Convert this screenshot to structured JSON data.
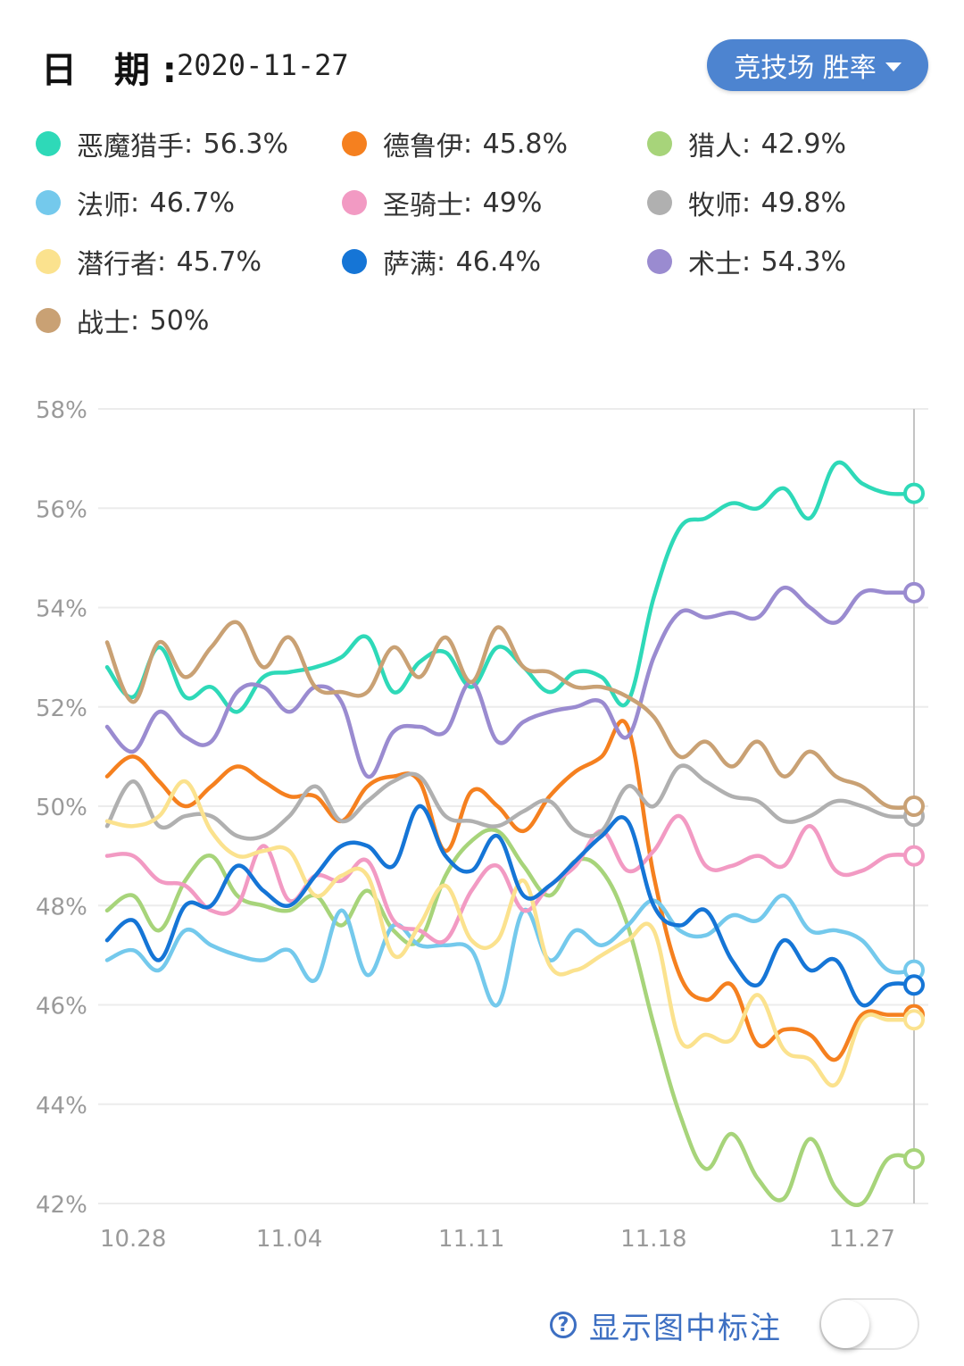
{
  "header": {
    "date_label": "日 期:",
    "date_value": "2020-11-27",
    "mode_button": "竞技场 胜率"
  },
  "legend": [
    {
      "name": "恶魔猎手",
      "value": "56.3%",
      "color": "#2ed9b8"
    },
    {
      "name": "德鲁伊",
      "value": "45.8%",
      "color": "#f5801f"
    },
    {
      "name": "猎人",
      "value": "42.9%",
      "color": "#a7d47a"
    },
    {
      "name": "法师",
      "value": "46.7%",
      "color": "#74c9ec"
    },
    {
      "name": "圣骑士",
      "value": "49%",
      "color": "#f29ac3"
    },
    {
      "name": "牧师",
      "value": "49.8%",
      "color": "#b0b0b0"
    },
    {
      "name": "潜行者",
      "value": "45.7%",
      "color": "#fbe28e"
    },
    {
      "name": "萨满",
      "value": "46.4%",
      "color": "#1575d6"
    },
    {
      "name": "术士",
      "value": "54.3%",
      "color": "#9a8bd0"
    },
    {
      "name": "战士",
      "value": "50%",
      "color": "#c9a174"
    }
  ],
  "chart_data": {
    "type": "line",
    "title": "竞技场 胜率",
    "ylim": [
      42,
      58
    ],
    "yticks": [
      "58%",
      "56%",
      "54%",
      "52%",
      "50%",
      "48%",
      "46%",
      "44%",
      "42%"
    ],
    "xlabels": [
      "10.28",
      "11.04",
      "11.11",
      "11.18",
      "11.27"
    ],
    "x": [
      "10.27",
      "10.28",
      "10.29",
      "10.30",
      "10.31",
      "11.01",
      "11.02",
      "11.03",
      "11.04",
      "11.05",
      "11.06",
      "11.07",
      "11.08",
      "11.09",
      "11.10",
      "11.11",
      "11.12",
      "11.13",
      "11.14",
      "11.15",
      "11.16",
      "11.17",
      "11.18",
      "11.19",
      "11.20",
      "11.21",
      "11.22",
      "11.23",
      "11.24",
      "11.25",
      "11.26",
      "11.27"
    ],
    "series": [
      {
        "name": "恶魔猎手",
        "color": "#2ed9b8",
        "values": [
          52.8,
          52.2,
          53.2,
          52.2,
          52.4,
          51.9,
          52.6,
          52.7,
          52.8,
          53.0,
          53.4,
          52.3,
          52.9,
          53.1,
          52.4,
          53.2,
          52.8,
          52.3,
          52.7,
          52.6,
          52.1,
          54.2,
          55.6,
          55.8,
          56.1,
          56.0,
          56.4,
          55.8,
          56.9,
          56.5,
          56.3,
          56.3
        ]
      },
      {
        "name": "德鲁伊",
        "color": "#f5801f",
        "values": [
          50.6,
          51.0,
          50.5,
          50.0,
          50.4,
          50.8,
          50.5,
          50.2,
          50.2,
          49.7,
          50.4,
          50.6,
          50.5,
          49.1,
          50.3,
          50.0,
          49.5,
          50.2,
          50.7,
          51.0,
          51.6,
          48.6,
          46.6,
          46.1,
          46.4,
          45.2,
          45.5,
          45.4,
          44.9,
          45.8,
          45.8,
          45.8
        ]
      },
      {
        "name": "猎人",
        "color": "#a7d47a",
        "values": [
          47.9,
          48.2,
          47.5,
          48.5,
          49.0,
          48.2,
          48.0,
          47.9,
          48.2,
          47.6,
          48.3,
          47.5,
          47.3,
          48.6,
          49.3,
          49.5,
          48.8,
          48.2,
          48.9,
          48.7,
          47.6,
          45.6,
          43.8,
          42.7,
          43.4,
          42.5,
          42.1,
          43.3,
          42.3,
          42.0,
          42.9,
          42.9
        ]
      },
      {
        "name": "法师",
        "color": "#74c9ec",
        "values": [
          46.9,
          47.1,
          46.7,
          47.5,
          47.2,
          47.0,
          46.9,
          47.1,
          46.5,
          47.9,
          46.6,
          47.6,
          47.2,
          47.2,
          47.1,
          46.0,
          47.9,
          46.9,
          47.5,
          47.2,
          47.6,
          48.1,
          47.5,
          47.4,
          47.8,
          47.7,
          48.2,
          47.5,
          47.5,
          47.3,
          46.7,
          46.7
        ]
      },
      {
        "name": "圣骑士",
        "color": "#f29ac3",
        "values": [
          49.0,
          49.0,
          48.5,
          48.4,
          47.9,
          48.0,
          49.2,
          48.1,
          48.6,
          48.5,
          48.9,
          47.7,
          47.5,
          47.3,
          48.3,
          48.8,
          47.9,
          48.4,
          48.8,
          49.5,
          48.7,
          49.1,
          49.8,
          48.8,
          48.8,
          49.0,
          48.8,
          49.6,
          48.7,
          48.7,
          49.0,
          49.0
        ]
      },
      {
        "name": "牧师",
        "color": "#b0b0b0",
        "values": [
          49.6,
          50.5,
          49.6,
          49.8,
          49.8,
          49.4,
          49.4,
          49.8,
          50.4,
          49.7,
          50.1,
          50.5,
          50.6,
          49.8,
          49.7,
          49.6,
          49.9,
          50.1,
          49.5,
          49.5,
          50.4,
          50.0,
          50.8,
          50.5,
          50.2,
          50.1,
          49.7,
          49.8,
          50.1,
          50.0,
          49.8,
          49.8
        ]
      },
      {
        "name": "潜行者",
        "color": "#fbe28e",
        "values": [
          49.7,
          49.6,
          49.8,
          50.5,
          49.5,
          49.0,
          49.1,
          49.1,
          48.2,
          48.6,
          48.6,
          47.0,
          47.6,
          48.4,
          47.3,
          47.3,
          48.5,
          46.8,
          46.7,
          47.0,
          47.3,
          47.5,
          45.3,
          45.4,
          45.3,
          46.2,
          45.1,
          44.9,
          44.4,
          45.7,
          45.7,
          45.7
        ]
      },
      {
        "name": "萨满",
        "color": "#1575d6",
        "values": [
          47.3,
          47.7,
          46.9,
          48.0,
          48.0,
          48.8,
          48.3,
          48.0,
          48.6,
          49.2,
          49.2,
          48.8,
          50.0,
          49.0,
          48.7,
          49.4,
          48.2,
          48.4,
          48.9,
          49.4,
          49.7,
          48.0,
          47.6,
          47.9,
          46.9,
          46.4,
          47.3,
          46.7,
          46.9,
          46.0,
          46.4,
          46.4
        ]
      },
      {
        "name": "术士",
        "color": "#9a8bd0",
        "values": [
          51.6,
          51.1,
          51.9,
          51.4,
          51.3,
          52.3,
          52.4,
          51.9,
          52.4,
          52.1,
          50.6,
          51.5,
          51.6,
          51.5,
          52.5,
          51.3,
          51.7,
          51.9,
          52.0,
          52.1,
          51.4,
          53.0,
          53.9,
          53.8,
          53.9,
          53.8,
          54.4,
          54.0,
          53.7,
          54.3,
          54.3,
          54.3
        ]
      },
      {
        "name": "战士",
        "color": "#c9a174",
        "values": [
          53.3,
          52.1,
          53.3,
          52.6,
          53.2,
          53.7,
          52.8,
          53.4,
          52.4,
          52.3,
          52.3,
          53.2,
          52.6,
          53.4,
          52.5,
          53.6,
          52.8,
          52.7,
          52.4,
          52.4,
          52.2,
          51.8,
          51.0,
          51.3,
          50.8,
          51.3,
          50.6,
          51.1,
          50.6,
          50.4,
          50.0,
          50.0
        ]
      }
    ]
  },
  "footer": {
    "help_icon": "?",
    "label": "显示图中标注",
    "toggle_on": false
  }
}
